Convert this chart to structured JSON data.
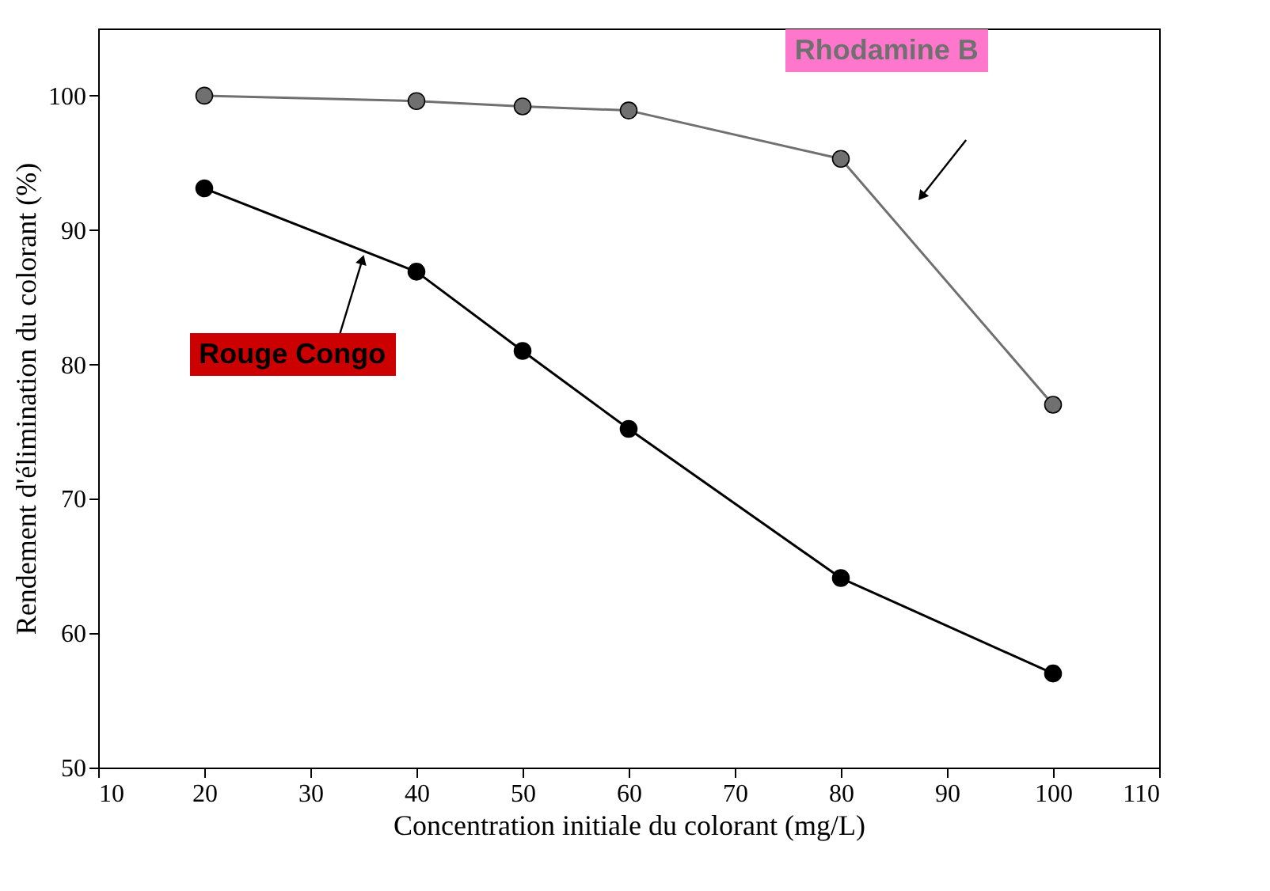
{
  "chart_data": {
    "type": "line",
    "xlabel": "Concentration initiale du colorant (mg/L)",
    "ylabel": "Rendement d'élimination du colorant (%)",
    "x": [
      20,
      40,
      50,
      60,
      80,
      100
    ],
    "series": [
      {
        "name": "Rhodamine B",
        "color": "#707070",
        "values": [
          100,
          99.6,
          99.2,
          98.9,
          95.3,
          77
        ]
      },
      {
        "name": "Rouge Congo",
        "color": "#000000",
        "values": [
          93.1,
          86.9,
          81,
          75.2,
          64.1,
          57
        ]
      }
    ],
    "xlim": [
      10,
      110
    ],
    "xticks": [
      10,
      20,
      30,
      40,
      50,
      60,
      70,
      80,
      90,
      100,
      110
    ],
    "ylim": [
      50,
      105
    ],
    "yticks": [
      50,
      60,
      70,
      80,
      90,
      100
    ],
    "grid": false,
    "marker": "circle",
    "line_style": "solid"
  }
}
